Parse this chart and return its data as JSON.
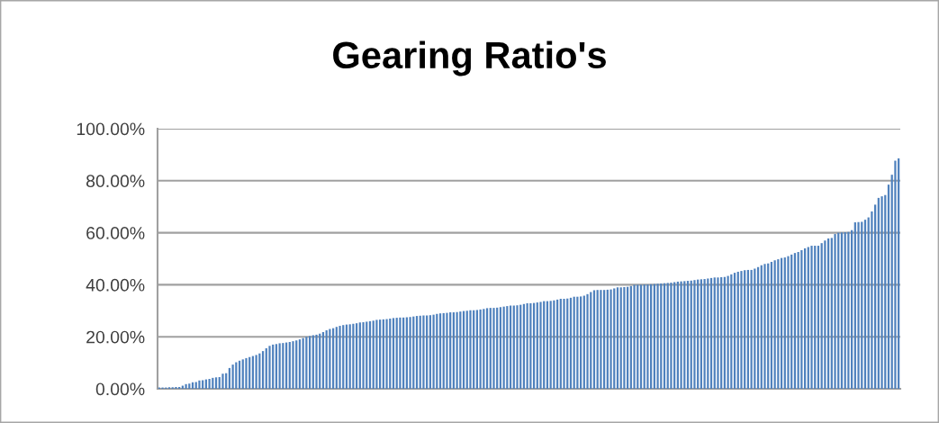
{
  "chart_data": {
    "type": "bar",
    "title": "Gearing Ratio's",
    "color": "#4f81bd",
    "categories": [
      null,
      null,
      null,
      null,
      null,
      null,
      null,
      null,
      null,
      null,
      null,
      null,
      null,
      null,
      null,
      null,
      null,
      null,
      null,
      null,
      null,
      null,
      null,
      null,
      null,
      null,
      null,
      null,
      null,
      null,
      null,
      null,
      null,
      null,
      null,
      null,
      null,
      null,
      null,
      null,
      null,
      null,
      null,
      null,
      null,
      null,
      null,
      null,
      null,
      null,
      null,
      null,
      null,
      null,
      null,
      null,
      null,
      null,
      null,
      null,
      null,
      null,
      null,
      null,
      null,
      null,
      null,
      null,
      null,
      null,
      null,
      null,
      null,
      null,
      null,
      null,
      null,
      null,
      null,
      null,
      null,
      null,
      null,
      null,
      null,
      null,
      null,
      null,
      null,
      null,
      null,
      null,
      null,
      null,
      null,
      null,
      null,
      null,
      null,
      null,
      null,
      null,
      null,
      null,
      null,
      null,
      null,
      null,
      null,
      null,
      null,
      null,
      null,
      null,
      null,
      null,
      null,
      null,
      null,
      null,
      null,
      null,
      null,
      null,
      null,
      null,
      null,
      null,
      null,
      null,
      null,
      null,
      null,
      null,
      null,
      null,
      null,
      null,
      null,
      null,
      null,
      null,
      null,
      null,
      null,
      null,
      null,
      null,
      null,
      null,
      null,
      null,
      null,
      null,
      null,
      null,
      null,
      null,
      null,
      null,
      null,
      null,
      null,
      null,
      null,
      null,
      null,
      null,
      null,
      null,
      null,
      null,
      null,
      null,
      null,
      null,
      null,
      null,
      null,
      null,
      null,
      null,
      null,
      null,
      null,
      null,
      null,
      null,
      null,
      null,
      null,
      null,
      null,
      null,
      null,
      null,
      null,
      null,
      null,
      null,
      null,
      null,
      null,
      null,
      null,
      null,
      null,
      null,
      null,
      null,
      null,
      null,
      null,
      null,
      null,
      null,
      null,
      null,
      null,
      null,
      null,
      null
    ],
    "values": [
      0.5,
      0.5,
      0.5,
      0.6,
      0.6,
      0.7,
      0.7,
      1.2,
      1.8,
      2.0,
      2.5,
      2.6,
      3.2,
      3.3,
      3.6,
      3.8,
      4.2,
      4.4,
      4.5,
      5.8,
      6.0,
      8.0,
      9.3,
      10.2,
      10.8,
      11.3,
      11.8,
      12.2,
      12.6,
      13.0,
      13.6,
      14.5,
      15.6,
      16.5,
      17.0,
      17.2,
      17.5,
      17.6,
      17.8,
      18.0,
      18.3,
      18.6,
      19.0,
      19.5,
      20.0,
      20.3,
      20.6,
      20.8,
      21.2,
      21.8,
      22.5,
      23.0,
      23.3,
      23.8,
      24.2,
      24.5,
      24.7,
      24.8,
      25.0,
      25.2,
      25.5,
      25.6,
      25.8,
      26.0,
      26.2,
      26.5,
      26.6,
      26.7,
      26.8,
      27.0,
      27.2,
      27.3,
      27.4,
      27.4,
      27.5,
      27.6,
      27.8,
      28.0,
      28.1,
      28.2,
      28.2,
      28.3,
      28.5,
      28.8,
      29.0,
      29.1,
      29.2,
      29.4,
      29.4,
      29.5,
      29.7,
      29.9,
      30.0,
      30.2,
      30.2,
      30.3,
      30.5,
      30.7,
      31.0,
      31.1,
      31.1,
      31.2,
      31.4,
      31.6,
      31.8,
      32.0,
      32.0,
      32.1,
      32.3,
      32.6,
      32.9,
      32.9,
      33.0,
      33.2,
      33.4,
      33.7,
      33.7,
      33.8,
      34.0,
      34.3,
      34.6,
      34.6,
      34.7,
      35.0,
      35.4,
      35.4,
      35.5,
      35.8,
      36.4,
      37.2,
      37.9,
      38.0,
      38.0,
      38.0,
      38.1,
      38.2,
      38.6,
      39.0,
      39.0,
      39.1,
      39.2,
      39.5,
      40.0,
      40.0,
      40.0,
      40.1,
      40.1,
      40.2,
      40.3,
      40.4,
      40.5,
      40.6,
      40.7,
      40.8,
      41.0,
      41.2,
      41.3,
      41.4,
      41.5,
      41.6,
      41.8,
      42.0,
      42.1,
      42.2,
      42.4,
      42.6,
      42.8,
      42.8,
      42.9,
      43.0,
      43.4,
      44.0,
      44.6,
      45.0,
      45.3,
      45.6,
      45.7,
      45.7,
      46.2,
      46.8,
      47.5,
      48.0,
      48.2,
      48.8,
      49.4,
      49.8,
      50.3,
      50.5,
      51.0,
      51.6,
      52.2,
      52.6,
      53.3,
      54.0,
      54.5,
      55.0,
      55.0,
      55.0,
      56.0,
      57.0,
      57.8,
      58.0,
      59.5,
      60.0,
      60.1,
      60.2,
      60.3,
      61.0,
      64.0,
      64.1,
      64.2,
      65.0,
      65.9,
      68.2,
      70.8,
      73.4,
      74.0,
      74.5,
      78.5,
      82.3,
      87.7,
      88.6
    ],
    "ylim": [
      0,
      100
    ],
    "yticks": [
      {
        "value": 0,
        "label": "0.00%"
      },
      {
        "value": 20,
        "label": "20.00%"
      },
      {
        "value": 40,
        "label": "40.00%"
      },
      {
        "value": 60,
        "label": "60.00%"
      },
      {
        "value": 80,
        "label": "80.00%"
      },
      {
        "value": 100,
        "label": "100.00%"
      }
    ],
    "grid": "y",
    "legend": false
  }
}
